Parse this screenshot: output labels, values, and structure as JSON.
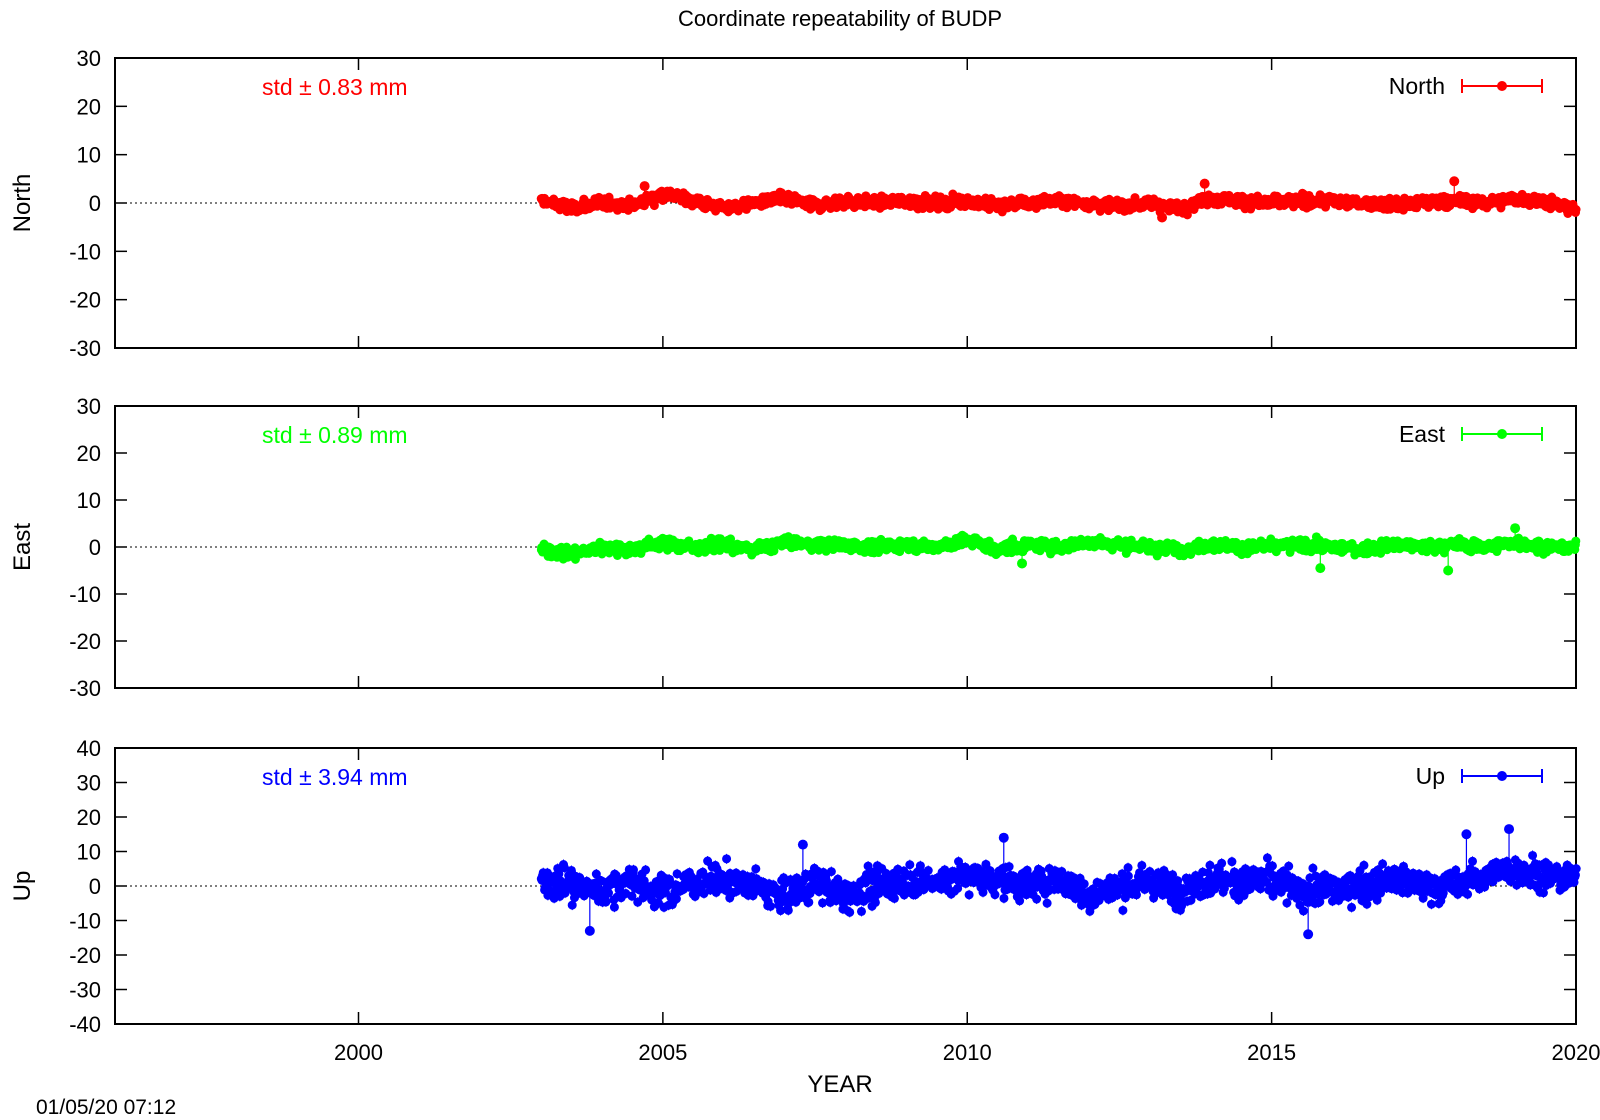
{
  "title": "Coordinate repeatability of BUDP",
  "timestamp": "01/05/20 07:12",
  "xaxis": {
    "label": "YEAR",
    "range": [
      1996,
      2020
    ],
    "ticks": [
      2000,
      2005,
      2010,
      2015,
      2020
    ],
    "tick_labels": [
      "2000",
      "2005",
      "2010",
      "2015",
      "2020"
    ]
  },
  "panels": [
    {
      "key": "north",
      "ylabel": "North",
      "legend": "North",
      "std_text": "std ± 0.83 mm",
      "color": "#ff0000",
      "ylim": [
        -30,
        30
      ],
      "yticks": [
        -30,
        -20,
        -10,
        0,
        10,
        20,
        30
      ],
      "ytick_labels": [
        "-30",
        "-20",
        "-10",
        "0",
        "10",
        "20",
        "30"
      ]
    },
    {
      "key": "east",
      "ylabel": "East",
      "legend": "East",
      "std_text": "std ± 0.89 mm",
      "color": "#00ff00",
      "ylim": [
        -30,
        30
      ],
      "yticks": [
        -30,
        -20,
        -10,
        0,
        10,
        20,
        30
      ],
      "ytick_labels": [
        "-30",
        "-20",
        "-10",
        "0",
        "10",
        "20",
        "30"
      ]
    },
    {
      "key": "up",
      "ylabel": "Up",
      "legend": "Up",
      "std_text": "std ± 3.94 mm",
      "color": "#0000ff",
      "ylim": [
        -40,
        40
      ],
      "yticks": [
        -40,
        -30,
        -20,
        -10,
        0,
        10,
        20,
        30,
        40
      ],
      "ytick_labels": [
        "-40",
        "-30",
        "-20",
        "-10",
        "0",
        "10",
        "20",
        "30",
        "40"
      ]
    }
  ],
  "chart_data": [
    {
      "type": "scatter",
      "title": "Coordinate repeatability of BUDP",
      "xlabel": "",
      "ylabel": "North",
      "xlim": [
        1996,
        2020
      ],
      "ylim": [
        -30,
        30
      ],
      "series": [
        {
          "name": "North",
          "x": [
            2003.0,
            2003.5,
            2004.0,
            2004.5,
            2005.0,
            2005.5,
            2006.0,
            2006.5,
            2007.0,
            2007.5,
            2008.0,
            2008.5,
            2009.0,
            2009.5,
            2010.0,
            2010.5,
            2011.0,
            2011.5,
            2012.0,
            2012.5,
            2013.0,
            2013.5,
            2014.0,
            2014.5,
            2015.0,
            2015.5,
            2016.0,
            2016.5,
            2017.0,
            2017.5,
            2018.0,
            2018.5,
            2019.0,
            2019.5,
            2020.0
          ],
          "y": [
            0.5,
            -1.0,
            0.0,
            -0.5,
            2.0,
            0.5,
            -1.0,
            0.0,
            1.0,
            -0.5,
            0.5,
            0.0,
            0.5,
            0.0,
            0.5,
            -0.5,
            0.0,
            0.5,
            0.0,
            -0.5,
            0.0,
            -1.0,
            1.0,
            0.5,
            0.0,
            0.5,
            0.5,
            0.0,
            -0.5,
            0.0,
            0.5,
            0.0,
            1.0,
            0.5,
            -1.5
          ],
          "outliers_x": [
            2004.7,
            2013.9,
            2018.0,
            2013.2
          ],
          "outliers_y": [
            3.5,
            4.0,
            4.5,
            -3.0
          ]
        }
      ]
    },
    {
      "type": "scatter",
      "xlabel": "",
      "ylabel": "East",
      "xlim": [
        1996,
        2020
      ],
      "ylim": [
        -30,
        30
      ],
      "series": [
        {
          "name": "East",
          "x": [
            2003.0,
            2003.5,
            2004.0,
            2004.5,
            2005.0,
            2005.5,
            2006.0,
            2006.5,
            2007.0,
            2007.5,
            2008.0,
            2008.5,
            2009.0,
            2009.5,
            2010.0,
            2010.5,
            2011.0,
            2011.5,
            2012.0,
            2012.5,
            2013.0,
            2013.5,
            2014.0,
            2014.5,
            2015.0,
            2015.5,
            2016.0,
            2016.5,
            2017.0,
            2017.5,
            2018.0,
            2018.5,
            2019.0,
            2019.5,
            2020.0
          ],
          "y": [
            -0.5,
            -1.5,
            0.0,
            -0.5,
            1.0,
            0.0,
            0.5,
            -0.5,
            1.0,
            0.5,
            0.5,
            0.0,
            0.5,
            0.0,
            1.5,
            -0.5,
            0.5,
            0.0,
            1.0,
            0.5,
            0.0,
            -0.5,
            0.5,
            0.0,
            0.0,
            0.5,
            0.0,
            -0.5,
            0.5,
            0.0,
            0.5,
            0.0,
            1.0,
            0.0,
            0.0
          ],
          "outliers_x": [
            2015.8,
            2017.9,
            2010.9,
            2019.0
          ],
          "outliers_y": [
            -4.5,
            -5.0,
            -3.5,
            4.0
          ]
        }
      ]
    },
    {
      "type": "scatter",
      "xlabel": "YEAR",
      "ylabel": "Up",
      "xlim": [
        1996,
        2020
      ],
      "ylim": [
        -40,
        40
      ],
      "series": [
        {
          "name": "Up",
          "x": [
            2003.0,
            2003.5,
            2004.0,
            2004.5,
            2005.0,
            2005.5,
            2006.0,
            2006.5,
            2007.0,
            2007.5,
            2008.0,
            2008.5,
            2009.0,
            2009.5,
            2010.0,
            2010.5,
            2011.0,
            2011.5,
            2012.0,
            2012.5,
            2013.0,
            2013.5,
            2014.0,
            2014.5,
            2015.0,
            2015.5,
            2016.0,
            2016.5,
            2017.0,
            2017.5,
            2018.0,
            2018.5,
            2019.0,
            2019.5,
            2020.0
          ],
          "y": [
            2.0,
            0.0,
            -1.0,
            1.0,
            -2.0,
            1.0,
            2.0,
            0.0,
            -3.0,
            1.0,
            -3.0,
            0.0,
            2.0,
            1.0,
            3.0,
            2.0,
            0.0,
            2.0,
            -3.0,
            0.0,
            1.0,
            -1.0,
            2.0,
            1.0,
            2.0,
            -2.0,
            -1.0,
            0.0,
            2.0,
            0.0,
            0.0,
            3.0,
            5.0,
            3.0,
            2.0
          ],
          "outliers_x": [
            2003.8,
            2015.6,
            2018.2,
            2018.9,
            2010.6,
            2007.3
          ],
          "outliers_y": [
            -13.0,
            -14.0,
            15.0,
            16.5,
            14.0,
            12.0
          ]
        }
      ]
    }
  ]
}
